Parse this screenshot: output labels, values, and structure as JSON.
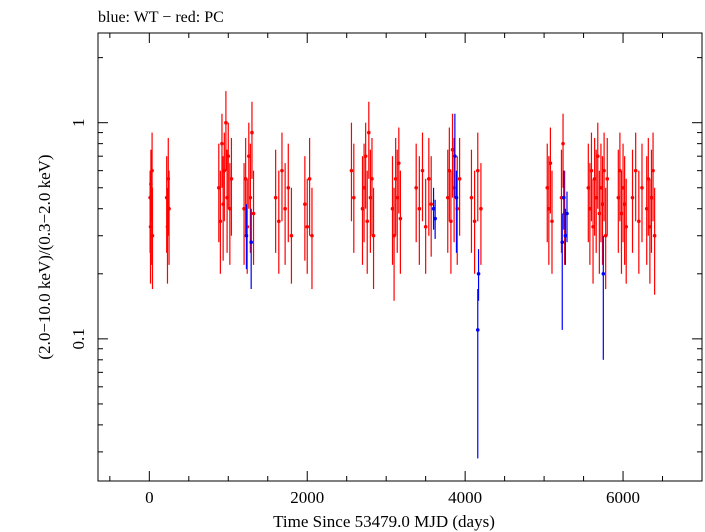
{
  "chart_data": {
    "type": "scatter",
    "title": "blue: WT − red: PC",
    "xlabel": "Time Since 53479.0 MJD (days)",
    "ylabel": "(2.0−10.0 keV)/(0.3−2.0 keV)",
    "xlim": [
      -650,
      7000
    ],
    "ylim": [
      0.022,
      2.6
    ],
    "yscale": "log",
    "x_ticks": [
      0,
      2000,
      4000,
      6000
    ],
    "x_tick_labels": [
      "0",
      "2000",
      "4000",
      "6000"
    ],
    "y_ticks": [
      0.1,
      1
    ],
    "y_tick_labels": [
      "0.1",
      "1"
    ],
    "grid": false,
    "colors": {
      "WT": "#0000ff",
      "PC": "#ff0000",
      "axis": "#000000"
    },
    "series": [
      {
        "name": "PC",
        "color": "#ff0000",
        "points": [
          [
            10,
            0.45,
            0.6,
            0.25
          ],
          [
            15,
            0.33,
            0.55,
            0.18
          ],
          [
            20,
            0.52,
            0.75,
            0.3
          ],
          [
            25,
            0.38,
            0.6,
            0.22
          ],
          [
            35,
            0.6,
            0.9,
            0.35
          ],
          [
            40,
            0.3,
            0.5,
            0.17
          ],
          [
            220,
            0.45,
            0.7,
            0.25
          ],
          [
            230,
            0.33,
            0.5,
            0.18
          ],
          [
            240,
            0.55,
            0.85,
            0.3
          ],
          [
            250,
            0.4,
            0.6,
            0.22
          ],
          [
            880,
            0.5,
            0.8,
            0.28
          ],
          [
            900,
            0.35,
            0.6,
            0.2
          ],
          [
            920,
            0.8,
            1.1,
            0.5
          ],
          [
            935,
            0.42,
            0.7,
            0.23
          ],
          [
            950,
            0.6,
            0.9,
            0.35
          ],
          [
            970,
            1.0,
            1.4,
            0.6
          ],
          [
            985,
            0.45,
            0.75,
            0.25
          ],
          [
            1000,
            0.7,
            1.0,
            0.4
          ],
          [
            1020,
            0.4,
            0.65,
            0.22
          ],
          [
            1040,
            0.55,
            0.85,
            0.3
          ],
          [
            1200,
            0.4,
            0.65,
            0.22
          ],
          [
            1220,
            0.55,
            0.85,
            0.3
          ],
          [
            1240,
            0.33,
            0.55,
            0.2
          ],
          [
            1260,
            0.7,
            1.0,
            0.4
          ],
          [
            1280,
            0.45,
            0.8,
            0.25
          ],
          [
            1300,
            0.9,
            1.25,
            0.55
          ],
          [
            1320,
            0.38,
            0.6,
            0.22
          ],
          [
            1600,
            0.45,
            0.75,
            0.25
          ],
          [
            1640,
            0.35,
            0.6,
            0.2
          ],
          [
            1680,
            0.6,
            0.9,
            0.35
          ],
          [
            1720,
            0.4,
            0.65,
            0.22
          ],
          [
            1760,
            0.5,
            0.8,
            0.28
          ],
          [
            1800,
            0.3,
            0.5,
            0.18
          ],
          [
            1970,
            0.42,
            0.7,
            0.23
          ],
          [
            2000,
            0.33,
            0.55,
            0.2
          ],
          [
            2030,
            0.55,
            0.85,
            0.3
          ],
          [
            2060,
            0.3,
            0.5,
            0.17
          ],
          [
            2560,
            0.6,
            1.0,
            0.35
          ],
          [
            2590,
            0.45,
            0.8,
            0.25
          ],
          [
            2700,
            0.4,
            0.7,
            0.22
          ],
          [
            2720,
            0.5,
            0.8,
            0.28
          ],
          [
            2740,
            0.7,
            1.0,
            0.4
          ],
          [
            2760,
            0.35,
            0.6,
            0.2
          ],
          [
            2780,
            0.9,
            1.25,
            0.55
          ],
          [
            2800,
            0.45,
            0.75,
            0.25
          ],
          [
            2820,
            0.55,
            0.85,
            0.3
          ],
          [
            2840,
            0.3,
            0.5,
            0.17
          ],
          [
            3080,
            0.4,
            0.7,
            0.22
          ],
          [
            3100,
            0.3,
            0.5,
            0.15
          ],
          [
            3120,
            0.55,
            0.85,
            0.3
          ],
          [
            3140,
            0.45,
            0.75,
            0.25
          ],
          [
            3160,
            0.65,
            0.95,
            0.38
          ],
          [
            3180,
            0.36,
            0.6,
            0.2
          ],
          [
            3380,
            0.5,
            0.8,
            0.28
          ],
          [
            3420,
            0.4,
            0.7,
            0.22
          ],
          [
            3460,
            0.6,
            0.9,
            0.35
          ],
          [
            3500,
            0.33,
            0.55,
            0.2
          ],
          [
            3540,
            0.55,
            0.85,
            0.3
          ],
          [
            3570,
            0.42,
            0.7,
            0.24
          ],
          [
            3780,
            0.45,
            0.75,
            0.25
          ],
          [
            3800,
            0.6,
            0.95,
            0.35
          ],
          [
            3820,
            0.35,
            0.6,
            0.2
          ],
          [
            3840,
            0.75,
            1.1,
            0.45
          ],
          [
            3860,
            0.5,
            0.85,
            0.28
          ],
          [
            3900,
            0.4,
            0.7,
            0.22
          ],
          [
            3930,
            0.55,
            0.85,
            0.3
          ],
          [
            4080,
            0.45,
            0.75,
            0.25
          ],
          [
            4120,
            0.35,
            0.6,
            0.2
          ],
          [
            4160,
            0.6,
            0.9,
            0.35
          ],
          [
            4200,
            0.4,
            0.65,
            0.22
          ],
          [
            5040,
            0.5,
            0.8,
            0.28
          ],
          [
            5060,
            0.4,
            0.7,
            0.22
          ],
          [
            5080,
            0.65,
            0.95,
            0.38
          ],
          [
            5100,
            0.35,
            0.6,
            0.2
          ],
          [
            5220,
            0.45,
            0.75,
            0.25
          ],
          [
            5240,
            0.8,
            1.1,
            0.5
          ],
          [
            5260,
            0.38,
            0.6,
            0.22
          ],
          [
            5560,
            0.5,
            0.8,
            0.28
          ],
          [
            5580,
            0.4,
            0.65,
            0.22
          ],
          [
            5600,
            0.6,
            0.9,
            0.35
          ],
          [
            5620,
            0.33,
            0.55,
            0.18
          ],
          [
            5640,
            0.55,
            0.85,
            0.3
          ],
          [
            5660,
            0.45,
            0.75,
            0.25
          ],
          [
            5680,
            0.7,
            1.0,
            0.4
          ],
          [
            5700,
            0.38,
            0.6,
            0.2
          ],
          [
            5720,
            0.5,
            0.8,
            0.28
          ],
          [
            5740,
            0.42,
            0.7,
            0.22
          ],
          [
            5760,
            0.6,
            0.9,
            0.35
          ],
          [
            5780,
            0.3,
            0.5,
            0.17
          ],
          [
            5800,
            0.55,
            0.85,
            0.3
          ],
          [
            5940,
            0.45,
            0.75,
            0.25
          ],
          [
            5960,
            0.6,
            0.9,
            0.35
          ],
          [
            5980,
            0.38,
            0.6,
            0.2
          ],
          [
            6000,
            0.5,
            0.8,
            0.28
          ],
          [
            6020,
            0.42,
            0.7,
            0.22
          ],
          [
            6040,
            0.33,
            0.55,
            0.18
          ],
          [
            6120,
            0.45,
            0.75,
            0.25
          ],
          [
            6160,
            0.6,
            0.9,
            0.35
          ],
          [
            6200,
            0.35,
            0.6,
            0.2
          ],
          [
            6240,
            0.5,
            0.8,
            0.28
          ],
          [
            6300,
            0.4,
            0.7,
            0.22
          ],
          [
            6320,
            0.55,
            0.85,
            0.3
          ],
          [
            6340,
            0.33,
            0.55,
            0.18
          ],
          [
            6360,
            0.45,
            0.75,
            0.25
          ],
          [
            6380,
            0.6,
            0.9,
            0.35
          ],
          [
            6400,
            0.3,
            0.5,
            0.16
          ]
        ]
      },
      {
        "name": "WT",
        "color": "#0000ff",
        "points": [
          [
            1230,
            0.3,
            0.42,
            0.21
          ],
          [
            1290,
            0.28,
            0.4,
            0.17
          ],
          [
            3600,
            0.4,
            0.5,
            0.32
          ],
          [
            3620,
            0.36,
            0.44,
            0.29
          ],
          [
            3870,
            0.7,
            1.1,
            0.45
          ],
          [
            3890,
            0.45,
            0.6,
            0.25
          ],
          [
            4160,
            0.11,
            0.17,
            0.028
          ],
          [
            4170,
            0.2,
            0.26,
            0.15
          ],
          [
            5230,
            0.28,
            0.38,
            0.11
          ],
          [
            5250,
            0.45,
            0.6,
            0.32
          ],
          [
            5270,
            0.3,
            0.4,
            0.22
          ],
          [
            5290,
            0.38,
            0.48,
            0.28
          ],
          [
            5750,
            0.2,
            0.3,
            0.08
          ]
        ]
      }
    ]
  }
}
